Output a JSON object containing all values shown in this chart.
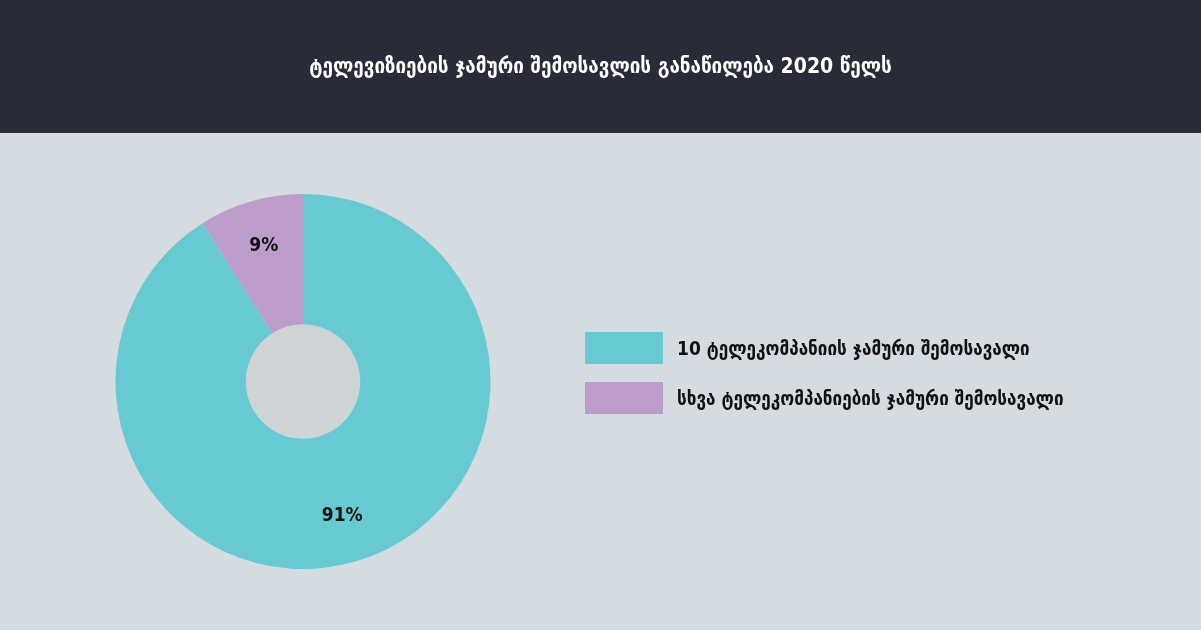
{
  "chart_data": {
    "type": "donut",
    "title": "ტელევიზიების ჯამური შემოსავლის განაწილება 2020 წელს",
    "categories": [
      "10 ტელეკომპანიის ჯამური შემოსავალი",
      "სხვა ტელეკომპანიების ჯამური შემოსავალი"
    ],
    "values": [
      91,
      9
    ],
    "colors": [
      "#67c9d1",
      "#bb9ccb"
    ],
    "value_labels": [
      "91%",
      "9%"
    ],
    "legend": "right"
  }
}
